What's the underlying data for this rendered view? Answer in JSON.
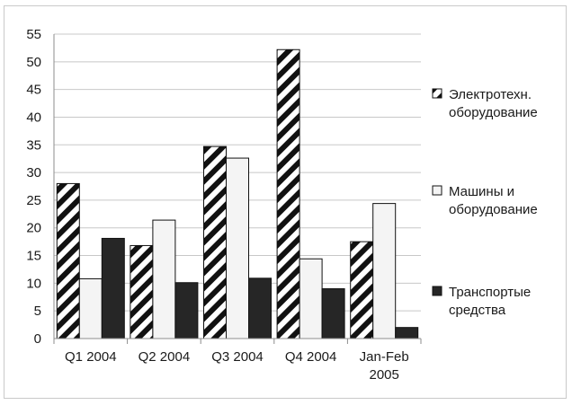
{
  "chart_data": {
    "type": "bar",
    "categories": [
      [
        "Q1 2004"
      ],
      [
        "Q2 2004"
      ],
      [
        "Q3 2004"
      ],
      [
        "Q4 2004"
      ],
      [
        "Jan-Feb",
        "2005"
      ]
    ],
    "series": [
      {
        "name": [
          "Электротехн.",
          "оборудование"
        ],
        "values": [
          28,
          16.8,
          34.7,
          52.2,
          17.5
        ],
        "pattern": "diagonal-stripes"
      },
      {
        "name": [
          "Машины и",
          "оборудование"
        ],
        "values": [
          10.8,
          21.4,
          32.6,
          14.4,
          24.4
        ],
        "color": "#f4f4f4"
      },
      {
        "name": [
          "Транспортые",
          "средства"
        ],
        "values": [
          18.1,
          10.1,
          10.9,
          9,
          2
        ],
        "color": "#262626"
      }
    ],
    "ylim": [
      0,
      55
    ],
    "yticks": [
      0,
      5,
      10,
      15,
      20,
      25,
      30,
      35,
      40,
      45,
      50,
      55
    ],
    "grid": true,
    "legend_position": "right"
  }
}
